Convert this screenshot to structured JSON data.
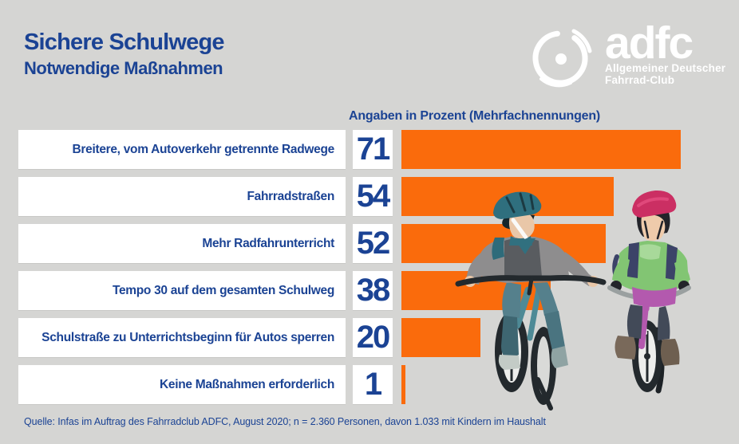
{
  "header": {
    "title": "Sichere Schulwege",
    "subtitle": "Notwendige Maßnahmen"
  },
  "logo": {
    "brand": "adfc",
    "tagline_line1": "Allgemeiner Deutscher",
    "tagline_line2": "Fahrrad-Club",
    "icon": "bicycle-wheel-icon",
    "color": "#FFFFFF"
  },
  "chart_data": {
    "type": "bar",
    "orientation": "horizontal",
    "note": "Angaben in Prozent (Mehrfachnennungen)",
    "unit": "percent",
    "categories": [
      "Breitere, vom Autoverkehr getrennte Radwege",
      "Fahrradstraßen",
      "Mehr Radfahrunterricht",
      "Tempo 30 auf dem gesamten Schulweg",
      "Schulstraße zu Unterrichtsbeginn für Autos sperren",
      "Keine Maßnahmen erforderlich"
    ],
    "values": [
      71,
      54,
      52,
      38,
      20,
      1
    ],
    "xlim": [
      0,
      71
    ],
    "bar_color": "#FA6B0C",
    "value_box_color": "#FFFFFF",
    "label_box_color": "#FFFFFF",
    "text_color": "#1B4394",
    "grid": false,
    "legend": false
  },
  "illustration": {
    "description": "Two children with helmets riding bicycles, watercolor style"
  },
  "source": "Quelle: Infas im Auftrag des Fahrradclub ADFC, August 2020; n = 2.360 Personen, davon 1.033 mit Kindern im Haushalt",
  "colors": {
    "background": "#D5D5D3",
    "accent_orange": "#FA6B0C",
    "text_blue": "#1B4394",
    "box_white": "#FFFFFF"
  }
}
